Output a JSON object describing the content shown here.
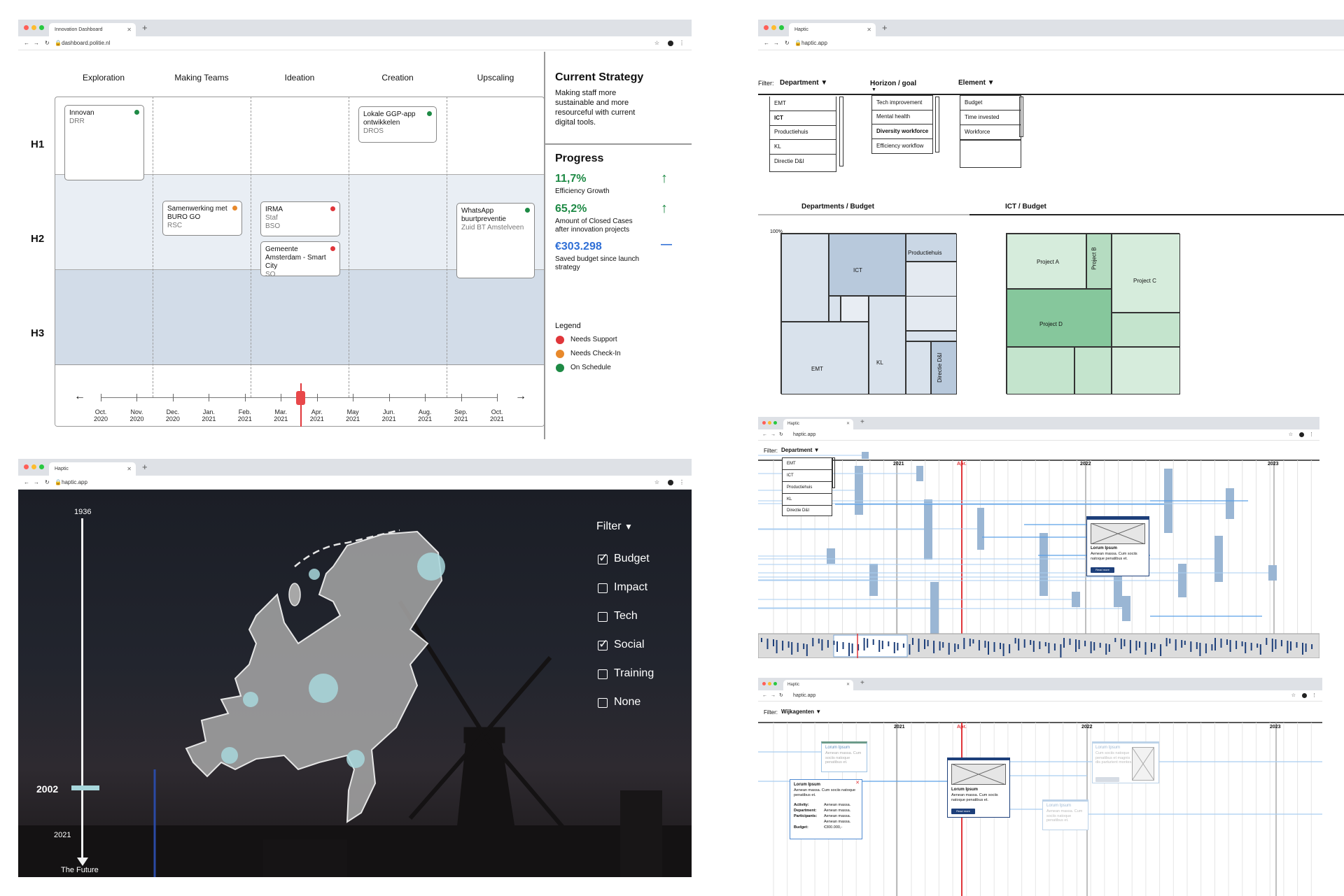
{
  "win1": {
    "tab_title": "Innovation Dashboard",
    "url": "dashboard.politie.nl",
    "phases": [
      "Exploration",
      "Making Teams",
      "Ideation",
      "Creation",
      "Upscaling"
    ],
    "horizons": [
      "H1",
      "H2",
      "H3"
    ],
    "cards": [
      {
        "title": "Innovan",
        "sub": "DRR",
        "status": "#1e8a45"
      },
      {
        "title": "Lokale GGP-app ontwikkelen",
        "sub": "DROS",
        "status": "#1e8a45"
      },
      {
        "title": "Samenwerking met BURO GO",
        "sub": "RSC",
        "status": "#e8892b"
      },
      {
        "title": "IRMA",
        "sub": "Staf BSO",
        "status": "#e0363a"
      },
      {
        "title": "Gemeente Amsterdam - Smart City",
        "sub": "SO",
        "status": "#e0363a"
      },
      {
        "title": "WhatsApp buurtpreventie",
        "sub": "Zuid BT Amstelveen",
        "status": "#1e8a45"
      }
    ],
    "timeline": {
      "left_arrow": "←",
      "right_arrow": "→",
      "months": [
        [
          "Oct.",
          "2020"
        ],
        [
          "Nov.",
          "2020"
        ],
        [
          "Dec.",
          "2020"
        ],
        [
          "Jan.",
          "2021"
        ],
        [
          "Feb.",
          "2021"
        ],
        [
          "Mar.",
          "2021"
        ],
        [
          "Apr.",
          "2021"
        ],
        [
          "May",
          "2021"
        ],
        [
          "Jun.",
          "2021"
        ],
        [
          "Aug.",
          "2021"
        ],
        [
          "Sep.",
          "2021"
        ],
        [
          "Oct.",
          "2021"
        ]
      ],
      "current_index": 5.5
    },
    "strategy": {
      "heading": "Current Strategy",
      "text": "Making staff more sustainable and more resourceful with current digital tools."
    },
    "progress": {
      "heading": "Progress",
      "items": [
        {
          "value": "11,7%",
          "label": "Efficiency Growth",
          "color": "#1e8a45",
          "trend": "↑"
        },
        {
          "value": "65,2%",
          "label": "Amount of Closed Cases after innovation projects",
          "color": "#1e8a45",
          "trend": "↑"
        },
        {
          "value": "€303.298",
          "label": "Saved budget since launch strategy",
          "color": "#2f6fd6",
          "trend": "—"
        }
      ]
    },
    "legend": {
      "heading": "Legend",
      "items": [
        {
          "label": "Needs Support",
          "color": "#e0363a"
        },
        {
          "label": "Needs Check-In",
          "color": "#e8892b"
        },
        {
          "label": "On Schedule",
          "color": "#1e8a45"
        }
      ]
    }
  },
  "win2": {
    "tab_title": "Haptic",
    "url": "haptic.app",
    "filters": [
      {
        "label": "Department",
        "prefix": "Filter:",
        "options": [
          "EMT",
          "ICT",
          "Productiehuis",
          "KL",
          "Directie D&I"
        ],
        "bold_index": 1
      },
      {
        "label": "Horizon / goal",
        "prefix": "",
        "options": [
          "Tech improvement",
          "Mental health",
          "Diversity workforce",
          "Efficiency workflow"
        ],
        "bold_index": 2
      },
      {
        "label": "Element",
        "prefix": "",
        "options": [
          "Budget",
          "Time invested",
          "Workforce",
          ""
        ],
        "bold_index": -1
      }
    ],
    "tabs": [
      "Departments / Budget",
      "ICT / Budget"
    ],
    "axis_top": "100%",
    "treemap1_labels": [
      "ICT",
      "Productiehuis",
      "EMT",
      "KL",
      "Directie D&I"
    ],
    "treemap2_labels": [
      "Project A",
      "Project B",
      "Project C",
      "Project D"
    ]
  },
  "win3": {
    "tab_title": "Haptic",
    "url": "haptic.app",
    "timeline_top": "1936",
    "current_year": "2002",
    "year_2021": "2021",
    "timeline_bottom": "The Future",
    "filter_heading": "Filter",
    "filters": [
      {
        "label": "Budget",
        "checked": true
      },
      {
        "label": "Impact",
        "checked": false
      },
      {
        "label": "Tech",
        "checked": false
      },
      {
        "label": "Social",
        "checked": true
      },
      {
        "label": "Training",
        "checked": false
      },
      {
        "label": "None",
        "checked": false
      }
    ]
  },
  "win4": {
    "tab_title": "Haptic",
    "url": "haptic.app",
    "filter_prefix": "Filter:",
    "filter_label": "Department",
    "options": [
      "EMT",
      "ICT",
      "Productiehuis",
      "KL",
      "Directie D&I"
    ],
    "years": [
      "2021",
      "Apr.",
      "2022",
      "2023"
    ],
    "popup": {
      "title": "Lorum Ipsum",
      "text": "Aenean massa. Cum sociis natoque penatibus et.",
      "button": "Read more"
    }
  },
  "win5": {
    "tab_title": "Haptic",
    "url": "haptic.app",
    "filter_prefix": "Filter:",
    "filter_label": "Wijkagenten",
    "years": [
      "2021",
      "Apr.",
      "2022",
      "2023"
    ],
    "card_a": {
      "title": "Lorum Ipsum",
      "text": "Aenean massa. Cum sociis natoque penatibus et."
    },
    "card_detail": {
      "title": "Lorum Ipsum",
      "text": "Aenean massa. Cum sociis natoque penatibus et.",
      "close": "✕",
      "rows": [
        {
          "k": "Activity:",
          "v": "Aenean massa."
        },
        {
          "k": "Department:",
          "v": "Aenean massa."
        },
        {
          "k": "Participants:",
          "v": "Aenean massa."
        },
        {
          "k": "",
          "v": "Aenean massa."
        },
        {
          "k": "Budget:",
          "v": "€300.000,-"
        }
      ]
    },
    "card_main": {
      "title": "Lorum Ipsum",
      "text": "Aenean massa. Cum sociis natoque penatibus et.",
      "button": "Read more"
    },
    "card_right_bottom": {
      "title": "Lorum Ipsum",
      "text": "Aenean massa. Cum sociis natoque penatibus et."
    },
    "card_right_top": {
      "title": "Lorum Ipsum",
      "text": "Cum sociis natoque penatibus et magnis dis parturient montes."
    }
  }
}
